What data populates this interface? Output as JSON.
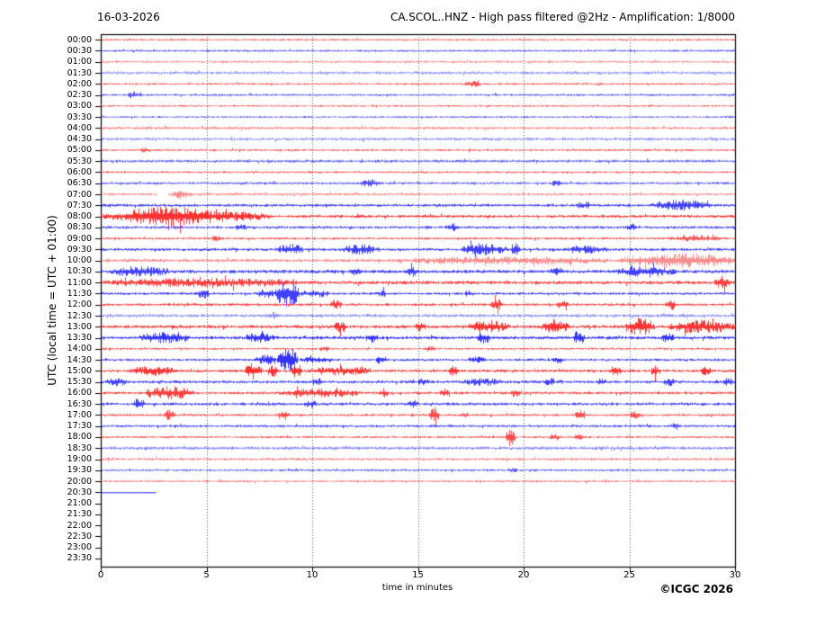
{
  "header": {
    "date": "16-03-2026",
    "title": "CA.SCOL..HNZ - High pass filtered @2Hz - Amplification: 1/8000"
  },
  "footer": {
    "credit": "©ICGC 2026"
  },
  "axes": {
    "ylabel": "UTC (local time = UTC + 01:00)",
    "xlabel": "time in minutes"
  },
  "chart_data": {
    "type": "helicorder",
    "xlim": [
      0,
      30
    ],
    "x_ticks": [
      0,
      5,
      10,
      15,
      20,
      25,
      30
    ],
    "x_gridlines": [
      5,
      10,
      15,
      20,
      25
    ],
    "trace_colors": {
      "red": "#ff0000",
      "blue": "#0000ff"
    },
    "grid_color": "#555555",
    "frame_color": "#000000",
    "row_interval_minutes": 30,
    "rows": [
      {
        "t": "00:00",
        "c": "red",
        "o": 0.7,
        "a": 0.6,
        "sp": [
          [
            0,
            30
          ]
        ],
        "ev": []
      },
      {
        "t": "00:30",
        "c": "blue",
        "o": 0.75,
        "a": 0.65,
        "sp": [
          [
            0,
            30
          ]
        ],
        "ev": []
      },
      {
        "t": "01:00",
        "c": "red",
        "o": 0.45,
        "a": 0.8,
        "sp": [
          [
            0,
            30
          ]
        ],
        "ev": []
      },
      {
        "t": "01:30",
        "c": "blue",
        "o": 0.4,
        "a": 1.1,
        "sp": [
          [
            0,
            30
          ]
        ],
        "ev": []
      },
      {
        "t": "02:00",
        "c": "red",
        "o": 0.7,
        "a": 0.65,
        "sp": [
          [
            0,
            30
          ]
        ],
        "ev": [
          [
            17.2,
            17.9,
            0.8
          ]
        ]
      },
      {
        "t": "02:30",
        "c": "blue",
        "o": 0.7,
        "a": 0.7,
        "sp": [
          [
            0,
            30
          ]
        ],
        "ev": [
          [
            1.2,
            1.9,
            0.8
          ]
        ]
      },
      {
        "t": "03:00",
        "c": "red",
        "o": 0.7,
        "a": 0.6,
        "sp": [
          [
            0,
            30
          ]
        ],
        "ev": []
      },
      {
        "t": "03:30",
        "c": "blue",
        "o": 0.7,
        "a": 0.6,
        "sp": [
          [
            0,
            30
          ]
        ],
        "ev": []
      },
      {
        "t": "04:00",
        "c": "red",
        "o": 0.42,
        "a": 1.1,
        "sp": [
          [
            0,
            30
          ]
        ],
        "ev": []
      },
      {
        "t": "04:30",
        "c": "blue",
        "o": 0.4,
        "a": 1.1,
        "sp": [
          [
            0,
            30
          ]
        ],
        "ev": []
      },
      {
        "t": "05:00",
        "c": "red",
        "o": 0.7,
        "a": 0.7,
        "sp": [
          [
            0,
            30
          ]
        ],
        "ev": [
          [
            1.8,
            2.4,
            0.6
          ]
        ]
      },
      {
        "t": "05:30",
        "c": "blue",
        "o": 0.6,
        "a": 1.0,
        "sp": [
          [
            0,
            30
          ]
        ],
        "ev": []
      },
      {
        "t": "06:00",
        "c": "red",
        "o": 0.7,
        "a": 0.7,
        "sp": [
          [
            0,
            30
          ]
        ],
        "ev": []
      },
      {
        "t": "06:30",
        "c": "blue",
        "o": 0.7,
        "a": 0.8,
        "sp": [
          [
            0,
            30
          ]
        ],
        "ev": [
          [
            12.2,
            13.2,
            0.9
          ],
          [
            21.3,
            21.8,
            0.7
          ]
        ]
      },
      {
        "t": "07:00",
        "c": "red",
        "o": 0.45,
        "a": 0.9,
        "sp": [
          [
            0,
            2.6
          ],
          [
            3.2,
            30
          ]
        ],
        "ev": [
          [
            3.3,
            4.3,
            1.2
          ]
        ]
      },
      {
        "t": "07:30",
        "c": "blue",
        "o": 0.75,
        "a": 1.0,
        "sp": [
          [
            0,
            30
          ]
        ],
        "ev": [
          [
            22.5,
            23.2,
            0.8
          ],
          [
            26,
            28.8,
            1.2
          ]
        ]
      },
      {
        "t": "08:00",
        "c": "red",
        "o": 0.8,
        "a": 1.0,
        "sp": [
          [
            0,
            30
          ]
        ],
        "ev": [
          [
            0,
            8,
            1.6
          ],
          [
            1.2,
            5.2,
            1.2
          ]
        ]
      },
      {
        "t": "08:30",
        "c": "blue",
        "o": 0.75,
        "a": 0.9,
        "sp": [
          [
            0,
            30
          ]
        ],
        "ev": [
          [
            6.3,
            6.9,
            0.7
          ],
          [
            16.3,
            17,
            0.9
          ],
          [
            24.8,
            25.4,
            0.8
          ]
        ]
      },
      {
        "t": "09:00",
        "c": "red",
        "o": 0.7,
        "a": 0.8,
        "sp": [
          [
            0,
            30
          ]
        ],
        "ev": [
          [
            5.2,
            5.8,
            0.7
          ],
          [
            26.8,
            29.5,
            0.7
          ]
        ]
      },
      {
        "t": "09:30",
        "c": "blue",
        "o": 0.75,
        "a": 1.0,
        "sp": [
          [
            0,
            30
          ]
        ],
        "ev": [
          [
            8.3,
            9.6,
            1.4
          ],
          [
            11.4,
            13.2,
            1.2
          ],
          [
            17,
            19.2,
            1.5
          ],
          [
            19.4,
            19.8,
            2.2
          ],
          [
            22,
            24,
            0.9
          ]
        ]
      },
      {
        "t": "10:00",
        "c": "red",
        "o": 0.45,
        "a": 1.2,
        "sp": [
          [
            0,
            30
          ]
        ],
        "ev": [
          [
            14,
            24,
            0.8
          ],
          [
            24.5,
            30,
            1.8
          ]
        ]
      },
      {
        "t": "10:30",
        "c": "blue",
        "o": 0.75,
        "a": 1.2,
        "sp": [
          [
            0,
            30
          ]
        ],
        "ev": [
          [
            0.4,
            3.2,
            1.1
          ],
          [
            11.8,
            12.4,
            0.9
          ],
          [
            14.3,
            15,
            1.2
          ],
          [
            21.2,
            21.9,
            0.9
          ],
          [
            24.3,
            27.2,
            1.1
          ]
        ]
      },
      {
        "t": "11:00",
        "c": "red",
        "o": 0.75,
        "a": 1.2,
        "sp": [
          [
            0,
            30
          ]
        ],
        "ev": [
          [
            0,
            9.5,
            0.9
          ],
          [
            29,
            29.8,
            1.8
          ]
        ]
      },
      {
        "t": "11:30",
        "c": "blue",
        "o": 0.75,
        "a": 0.9,
        "sp": [
          [
            0,
            30
          ]
        ],
        "ev": [
          [
            4.6,
            5.1,
            1.5
          ],
          [
            7.4,
            8.2,
            1.2
          ],
          [
            8.2,
            9.4,
            3.8
          ],
          [
            9.4,
            10.8,
            0.9
          ],
          [
            13.1,
            13.5,
            0.8
          ],
          [
            17.2,
            17.6,
            0.8
          ]
        ]
      },
      {
        "t": "12:00",
        "c": "red",
        "o": 0.75,
        "a": 0.9,
        "sp": [
          [
            0,
            30
          ]
        ],
        "ev": [
          [
            10.8,
            11.4,
            1.2
          ],
          [
            18.4,
            19,
            1.5
          ],
          [
            21.5,
            22.1,
            0.9
          ],
          [
            26.7,
            27.2,
            1.6
          ]
        ]
      },
      {
        "t": "12:30",
        "c": "blue",
        "o": 0.45,
        "a": 1.1,
        "sp": [
          [
            0,
            30
          ]
        ],
        "ev": [
          [
            7.8,
            8.4,
            0.7
          ]
        ]
      },
      {
        "t": "13:00",
        "c": "red",
        "o": 0.8,
        "a": 1.1,
        "sp": [
          [
            0,
            30
          ]
        ],
        "ev": [
          [
            11,
            11.6,
            1.3
          ],
          [
            14.8,
            15.4,
            1.0
          ],
          [
            17.3,
            19.3,
            1.6
          ],
          [
            20.8,
            22.2,
            1.5
          ],
          [
            24.8,
            26.2,
            2.2
          ],
          [
            26.8,
            30,
            1.6
          ]
        ]
      },
      {
        "t": "13:30",
        "c": "blue",
        "o": 0.8,
        "a": 1.1,
        "sp": [
          [
            0,
            30
          ]
        ],
        "ev": [
          [
            1.8,
            4.2,
            1.3
          ],
          [
            6.8,
            8.2,
            1.2
          ],
          [
            12.5,
            13.1,
            1.0
          ],
          [
            17.8,
            18.4,
            1.3
          ],
          [
            22.3,
            22.9,
            1.6
          ],
          [
            26.5,
            27.1,
            1.1
          ]
        ]
      },
      {
        "t": "14:00",
        "c": "red",
        "o": 0.7,
        "a": 0.7,
        "sp": [
          [
            0,
            30
          ]
        ],
        "ev": [
          [
            10.3,
            10.8,
            0.7
          ],
          [
            15.3,
            15.8,
            0.6
          ]
        ]
      },
      {
        "t": "14:30",
        "c": "blue",
        "o": 0.8,
        "a": 0.8,
        "sp": [
          [
            0,
            30
          ]
        ],
        "ev": [
          [
            7.3,
            8.3,
            1.2
          ],
          [
            8.3,
            9.3,
            3.9
          ],
          [
            9.4,
            11,
            0.8
          ],
          [
            13,
            13.5,
            1.2
          ],
          [
            17.3,
            18.2,
            0.7
          ],
          [
            21.3,
            21.9,
            0.8
          ]
        ]
      },
      {
        "t": "15:00",
        "c": "red",
        "o": 0.8,
        "a": 0.9,
        "sp": [
          [
            0,
            30
          ]
        ],
        "ev": [
          [
            1.3,
            3.6,
            1.2
          ],
          [
            6.8,
            7.6,
            2.8
          ],
          [
            7.9,
            8.4,
            1.8
          ],
          [
            9,
            9.5,
            1.9
          ],
          [
            9.8,
            12.8,
            1.1
          ],
          [
            16.4,
            16.9,
            1.3
          ],
          [
            24,
            24.6,
            1.1
          ],
          [
            26,
            26.5,
            1.4
          ],
          [
            28.3,
            28.9,
            1.2
          ]
        ]
      },
      {
        "t": "15:30",
        "c": "blue",
        "o": 0.75,
        "a": 1.0,
        "sp": [
          [
            0,
            30
          ]
        ],
        "ev": [
          [
            0.2,
            1.2,
            1.1
          ],
          [
            10,
            10.5,
            1.0
          ],
          [
            15,
            15.5,
            0.9
          ],
          [
            17,
            19,
            0.8
          ],
          [
            21,
            21.5,
            0.9
          ],
          [
            23.4,
            23.9,
            0.9
          ],
          [
            26.6,
            27.1,
            1.2
          ],
          [
            29.4,
            29.9,
            1.0
          ]
        ]
      },
      {
        "t": "16:00",
        "c": "red",
        "o": 0.75,
        "a": 0.9,
        "sp": [
          [
            0,
            30
          ]
        ],
        "ev": [
          [
            2,
            4.4,
            1.7
          ],
          [
            8.4,
            12.4,
            1.0
          ],
          [
            13.1,
            13.6,
            1.1
          ],
          [
            16,
            16.5,
            1.0
          ],
          [
            19.4,
            19.9,
            1.1
          ]
        ]
      },
      {
        "t": "16:30",
        "c": "blue",
        "o": 0.75,
        "a": 1.0,
        "sp": [
          [
            0,
            30
          ]
        ],
        "ev": [
          [
            1.5,
            2.1,
            1.3
          ],
          [
            9.6,
            10.2,
            0.8
          ],
          [
            14.5,
            15,
            0.9
          ]
        ]
      },
      {
        "t": "17:00",
        "c": "red",
        "o": 0.7,
        "a": 0.8,
        "sp": [
          [
            0,
            30
          ]
        ],
        "ev": [
          [
            3,
            3.5,
            1.4
          ],
          [
            8.4,
            8.9,
            1.3
          ],
          [
            15.5,
            16,
            2.4
          ],
          [
            17,
            17.4,
            0.9
          ],
          [
            22.4,
            22.9,
            1.7
          ],
          [
            25,
            25.5,
            0.9
          ]
        ]
      },
      {
        "t": "17:30",
        "c": "blue",
        "o": 0.7,
        "a": 0.9,
        "sp": [
          [
            0,
            30
          ]
        ],
        "ev": [
          [
            26.9,
            27.4,
            0.8
          ]
        ]
      },
      {
        "t": "18:00",
        "c": "red",
        "o": 0.7,
        "a": 0.7,
        "sp": [
          [
            0,
            30
          ]
        ],
        "ev": [
          [
            19.1,
            19.6,
            2.6
          ],
          [
            21.2,
            21.7,
            0.8
          ],
          [
            22.4,
            22.9,
            0.7
          ]
        ]
      },
      {
        "t": "18:30",
        "c": "blue",
        "o": 0.45,
        "a": 1.2,
        "sp": [
          [
            0,
            30
          ]
        ],
        "ev": []
      },
      {
        "t": "19:00",
        "c": "red",
        "o": 0.45,
        "a": 1.0,
        "sp": [
          [
            0,
            30
          ]
        ],
        "ev": []
      },
      {
        "t": "19:30",
        "c": "blue",
        "o": 0.7,
        "a": 0.7,
        "sp": [
          [
            0,
            30
          ]
        ],
        "ev": [
          [
            19.2,
            19.7,
            0.6
          ]
        ]
      },
      {
        "t": "20:00",
        "c": "red",
        "o": 0.5,
        "a": 0.8,
        "sp": [
          [
            0,
            30
          ]
        ],
        "ev": []
      },
      {
        "t": "20:30",
        "c": "blue",
        "o": 0.8,
        "a": 0.15,
        "sp": [
          [
            0,
            2.6
          ]
        ],
        "ev": []
      },
      {
        "t": "21:00",
        "c": "red",
        "o": 0.7,
        "a": 0.7,
        "sp": [],
        "ev": []
      },
      {
        "t": "21:30",
        "c": "blue",
        "o": 0.7,
        "a": 0.7,
        "sp": [],
        "ev": []
      },
      {
        "t": "22:00",
        "c": "red",
        "o": 0.7,
        "a": 0.7,
        "sp": [],
        "ev": []
      },
      {
        "t": "22:30",
        "c": "blue",
        "o": 0.7,
        "a": 0.7,
        "sp": [],
        "ev": []
      },
      {
        "t": "23:00",
        "c": "red",
        "o": 0.7,
        "a": 0.7,
        "sp": [],
        "ev": []
      },
      {
        "t": "23:30",
        "c": "blue",
        "o": 0.7,
        "a": 0.7,
        "sp": [],
        "ev": []
      }
    ]
  }
}
